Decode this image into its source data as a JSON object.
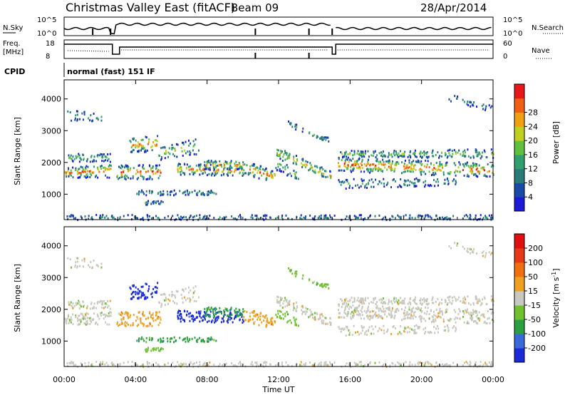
{
  "header": {
    "title": "Christmas Valley East (fitACF)",
    "beam": "Beam 09",
    "date": "28/Apr/2014"
  },
  "side_labels": {
    "nsky": "N.Sky",
    "nsearch": "N.Search",
    "freq": "Freq.",
    "freq_unit": "[MHz]",
    "nave": "Nave",
    "cpid": "CPID",
    "cpid_value": "normal (fast) 151 IF"
  },
  "noise_axis": {
    "left_ticks": [
      "10^5",
      "10^0"
    ],
    "right_ticks": [
      "10^5",
      "10^0"
    ]
  },
  "freq_axis": {
    "left_ticks": [
      "18",
      "8"
    ],
    "right_ticks": [
      "60",
      "0"
    ]
  },
  "chart_data": [
    {
      "type": "heatmap",
      "name": "power",
      "ylabel": "Slant Range [km]",
      "xlabel": "Time UT",
      "xticks": [
        "00:00",
        "04:00",
        "08:00",
        "12:00",
        "16:00",
        "20:00",
        "00:00"
      ],
      "yticks": [
        1000,
        2000,
        3000,
        4000
      ],
      "ylim": [
        200,
        4600
      ],
      "colorbar": {
        "label": "Power [dB]",
        "ticks": [
          4,
          8,
          12,
          16,
          20,
          24,
          28
        ],
        "colors": [
          "#1a1ad8",
          "#1a4aa8",
          "#2a7a7a",
          "#30a070",
          "#60c040",
          "#c0d020",
          "#f0a010",
          "#f06010",
          "#e81818"
        ]
      }
    },
    {
      "type": "heatmap",
      "name": "velocity",
      "ylabel": "Slant Range [km]",
      "xlabel": "Time UT",
      "xticks": [
        "00:00",
        "04:00",
        "08:00",
        "12:00",
        "16:00",
        "20:00",
        "00:00"
      ],
      "yticks": [
        1000,
        2000,
        3000,
        4000
      ],
      "ylim": [
        200,
        4600
      ],
      "colorbar": {
        "label": "Velocity [m s",
        "label_sup": "-1",
        "label_end": "]",
        "ticks": [
          "200",
          "100",
          "50",
          "15",
          "-15",
          "-50",
          "-100",
          "-200"
        ],
        "colors": [
          "#1a2ad8",
          "#3a6ad8",
          "#2aa040",
          "#70c030",
          "#c8c8c0",
          "#f0a020",
          "#f07010",
          "#e83818",
          "#e01010"
        ]
      }
    }
  ]
}
